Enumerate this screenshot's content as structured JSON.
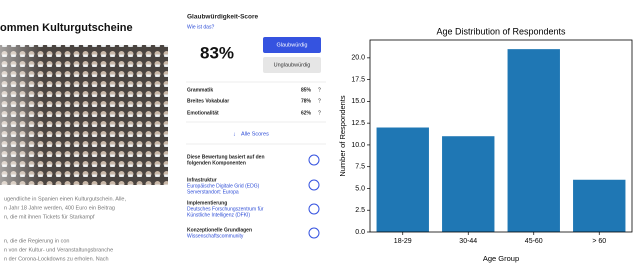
{
  "article": {
    "headline": "ommen Kulturgutscheine",
    "paragraphs": [
      [
        "ugendliche in Spanien einen Kulturgutschein. Alle,",
        "n Jahr 18 Jahre werden, 400 Euro ein Beitrag",
        "n, die mit ihnen Tickets für Starkampf"
      ],
      [
        "n, die die Regierung in con",
        "n von der Kultur- und Veranstaltungsbranche",
        "n der Corona-Lockdowns zu erholen. Nach"
      ]
    ]
  },
  "panel": {
    "title": "Glaubwürdigkeit-Score",
    "link": "Wie ist das?",
    "score": "83%",
    "buttons": [
      "Glaubwürdig",
      "Unglaubwürdig"
    ],
    "metrics": [
      {
        "label": "Grammatik",
        "value": "85%"
      },
      {
        "label": "Breites Vokabular",
        "value": "78%"
      },
      {
        "label": "Emotionalität",
        "value": "62%"
      }
    ],
    "help": "?",
    "all_scores": "Alle Scores",
    "sections": [
      {
        "title": "Diese Bewertung basiert auf den",
        "lines": [
          "folgenden Komponenten"
        ]
      },
      {
        "title": "Infrastruktur",
        "lines": [
          "Europäische Digitale Grid (EDG)",
          "Serverstandort: Europa"
        ]
      },
      {
        "title": "Implementierung",
        "lines": [
          "Deutsches Forschungszentrum für",
          "Künstliche Intelligenz (DFKI)"
        ]
      },
      {
        "title": "Konzeptionelle Grundlagen",
        "lines": [
          "Wissenschaftscommunity"
        ]
      }
    ]
  },
  "chart_data": {
    "type": "bar",
    "title": "Age Distribution of Respondents",
    "x_label": "Age Group",
    "y_label": "Number of Respondents",
    "categories": [
      "18-29",
      "30-44",
      "45-60",
      "> 60"
    ],
    "values": [
      12,
      11,
      21,
      6
    ],
    "color": "#1f77b4",
    "ylim": [
      0,
      22.05
    ],
    "yticks": [
      {
        "value": 0,
        "label": "0.0"
      },
      {
        "value": 2.5,
        "label": "2.5"
      },
      {
        "value": 5,
        "label": "5.0"
      },
      {
        "value": 7.5,
        "label": "7.5"
      },
      {
        "value": 10,
        "label": "10.0"
      },
      {
        "value": 12.5,
        "label": "12.5"
      },
      {
        "value": 15,
        "label": "15.0"
      },
      {
        "value": 17.5,
        "label": "17.5"
      },
      {
        "value": 20,
        "label": "20.0"
      }
    ]
  }
}
